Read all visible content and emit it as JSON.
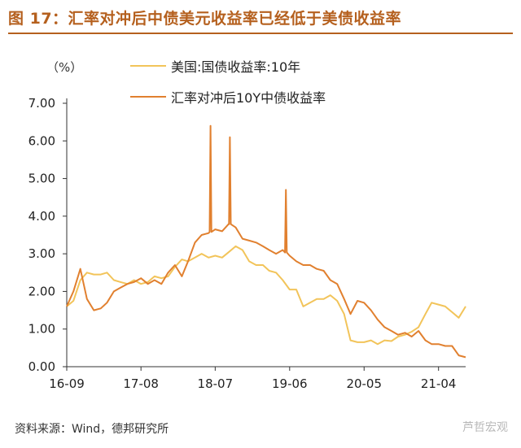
{
  "header": {
    "title": "图 17：汇率对冲后中债美元收益率已经低于美债收益率"
  },
  "unit_label": "（%）",
  "source": "资料来源：Wind，德邦研究所",
  "watermark": "芦哲宏观",
  "colors": {
    "title": "#B5601E",
    "series_us": "#F2C45A",
    "series_cn": "#E1802F",
    "axis": "#333333"
  },
  "chart_data": {
    "type": "line",
    "title": "",
    "xlabel": "",
    "ylabel": "（%）",
    "ylim": [
      0,
      7
    ],
    "yticks": [
      "0.00",
      "1.00",
      "2.00",
      "3.00",
      "4.00",
      "5.00",
      "6.00",
      "7.00"
    ],
    "xticks": [
      "16-09",
      "17-08",
      "18-07",
      "19-06",
      "20-05",
      "21-04"
    ],
    "x_tick_values": [
      "2016-09",
      "2017-08",
      "2018-07",
      "2019-06",
      "2020-05",
      "2021-04"
    ],
    "x_range": [
      "2016-09",
      "2021-08"
    ],
    "grid": false,
    "legend_position": "top",
    "series": [
      {
        "name": "美国:国债收益率:10年",
        "color": "#F2C45A",
        "x": [
          "2016-09",
          "2016-10",
          "2016-11",
          "2016-12",
          "2017-01",
          "2017-02",
          "2017-03",
          "2017-04",
          "2017-05",
          "2017-06",
          "2017-07",
          "2017-08",
          "2017-09",
          "2017-10",
          "2017-11",
          "2017-12",
          "2018-01",
          "2018-02",
          "2018-03",
          "2018-04",
          "2018-05",
          "2018-06",
          "2018-07",
          "2018-08",
          "2018-09",
          "2018-10",
          "2018-11",
          "2018-12",
          "2019-01",
          "2019-02",
          "2019-03",
          "2019-04",
          "2019-05",
          "2019-06",
          "2019-07",
          "2019-08",
          "2019-09",
          "2019-10",
          "2019-11",
          "2019-12",
          "2020-01",
          "2020-02",
          "2020-03",
          "2020-04",
          "2020-05",
          "2020-06",
          "2020-07",
          "2020-08",
          "2020-09",
          "2020-10",
          "2020-11",
          "2020-12",
          "2021-01",
          "2021-02",
          "2021-03",
          "2021-04",
          "2021-05",
          "2021-06",
          "2021-07",
          "2021-08"
        ],
        "values": [
          1.6,
          1.75,
          2.3,
          2.5,
          2.45,
          2.45,
          2.5,
          2.3,
          2.25,
          2.2,
          2.3,
          2.2,
          2.25,
          2.4,
          2.35,
          2.4,
          2.65,
          2.85,
          2.8,
          2.9,
          3.0,
          2.9,
          2.95,
          2.9,
          3.05,
          3.2,
          3.1,
          2.8,
          2.7,
          2.7,
          2.55,
          2.5,
          2.3,
          2.05,
          2.05,
          1.6,
          1.7,
          1.8,
          1.8,
          1.9,
          1.75,
          1.4,
          0.7,
          0.65,
          0.65,
          0.7,
          0.6,
          0.7,
          0.68,
          0.8,
          0.85,
          0.93,
          1.05,
          1.4,
          1.7,
          1.65,
          1.6,
          1.45,
          1.3,
          1.6
        ]
      },
      {
        "name": "汇率对冲后10Y中债收益率",
        "color": "#E1802F",
        "x": [
          "2016-09",
          "2016-10",
          "2016-11",
          "2016-12",
          "2017-01",
          "2017-02",
          "2017-03",
          "2017-04",
          "2017-05",
          "2017-06",
          "2017-07",
          "2017-08",
          "2017-09",
          "2017-10",
          "2017-11",
          "2017-12",
          "2018-01",
          "2018-02",
          "2018-03",
          "2018-04",
          "2018-05",
          "2018-06",
          "2018-07",
          "2018-08",
          "2018-09",
          "2018-10",
          "2018-11",
          "2018-12",
          "2019-01",
          "2019-02",
          "2019-03",
          "2019-04",
          "2019-05",
          "2019-06",
          "2019-07",
          "2019-08",
          "2019-09",
          "2019-10",
          "2019-11",
          "2019-12",
          "2020-01",
          "2020-02",
          "2020-03",
          "2020-04",
          "2020-05",
          "2020-06",
          "2020-07",
          "2020-08",
          "2020-09",
          "2020-10",
          "2020-11",
          "2020-12",
          "2021-01",
          "2021-02",
          "2021-03",
          "2021-04",
          "2021-05",
          "2021-06",
          "2021-07",
          "2021-08"
        ],
        "values": [
          1.6,
          2.0,
          2.6,
          1.8,
          1.5,
          1.55,
          1.7,
          2.0,
          2.1,
          2.2,
          2.25,
          2.35,
          2.2,
          2.3,
          2.2,
          2.5,
          2.7,
          2.4,
          2.8,
          3.3,
          3.5,
          3.55,
          3.65,
          3.6,
          3.8,
          3.7,
          3.4,
          3.35,
          3.3,
          3.2,
          3.1,
          3.0,
          3.1,
          2.95,
          2.8,
          2.7,
          2.7,
          2.6,
          2.55,
          2.3,
          2.2,
          1.8,
          1.4,
          1.75,
          1.7,
          1.5,
          1.25,
          1.05,
          0.95,
          0.85,
          0.9,
          0.8,
          0.95,
          0.7,
          0.6,
          0.6,
          0.55,
          0.55,
          0.3,
          0.25
        ]
      }
    ],
    "spikes": [
      {
        "series": 1,
        "x": "2018-06-10",
        "value": 6.4
      },
      {
        "series": 1,
        "x": "2018-09-05",
        "value": 6.1
      },
      {
        "series": 1,
        "x": "2019-05-15",
        "value": 4.7
      }
    ]
  }
}
